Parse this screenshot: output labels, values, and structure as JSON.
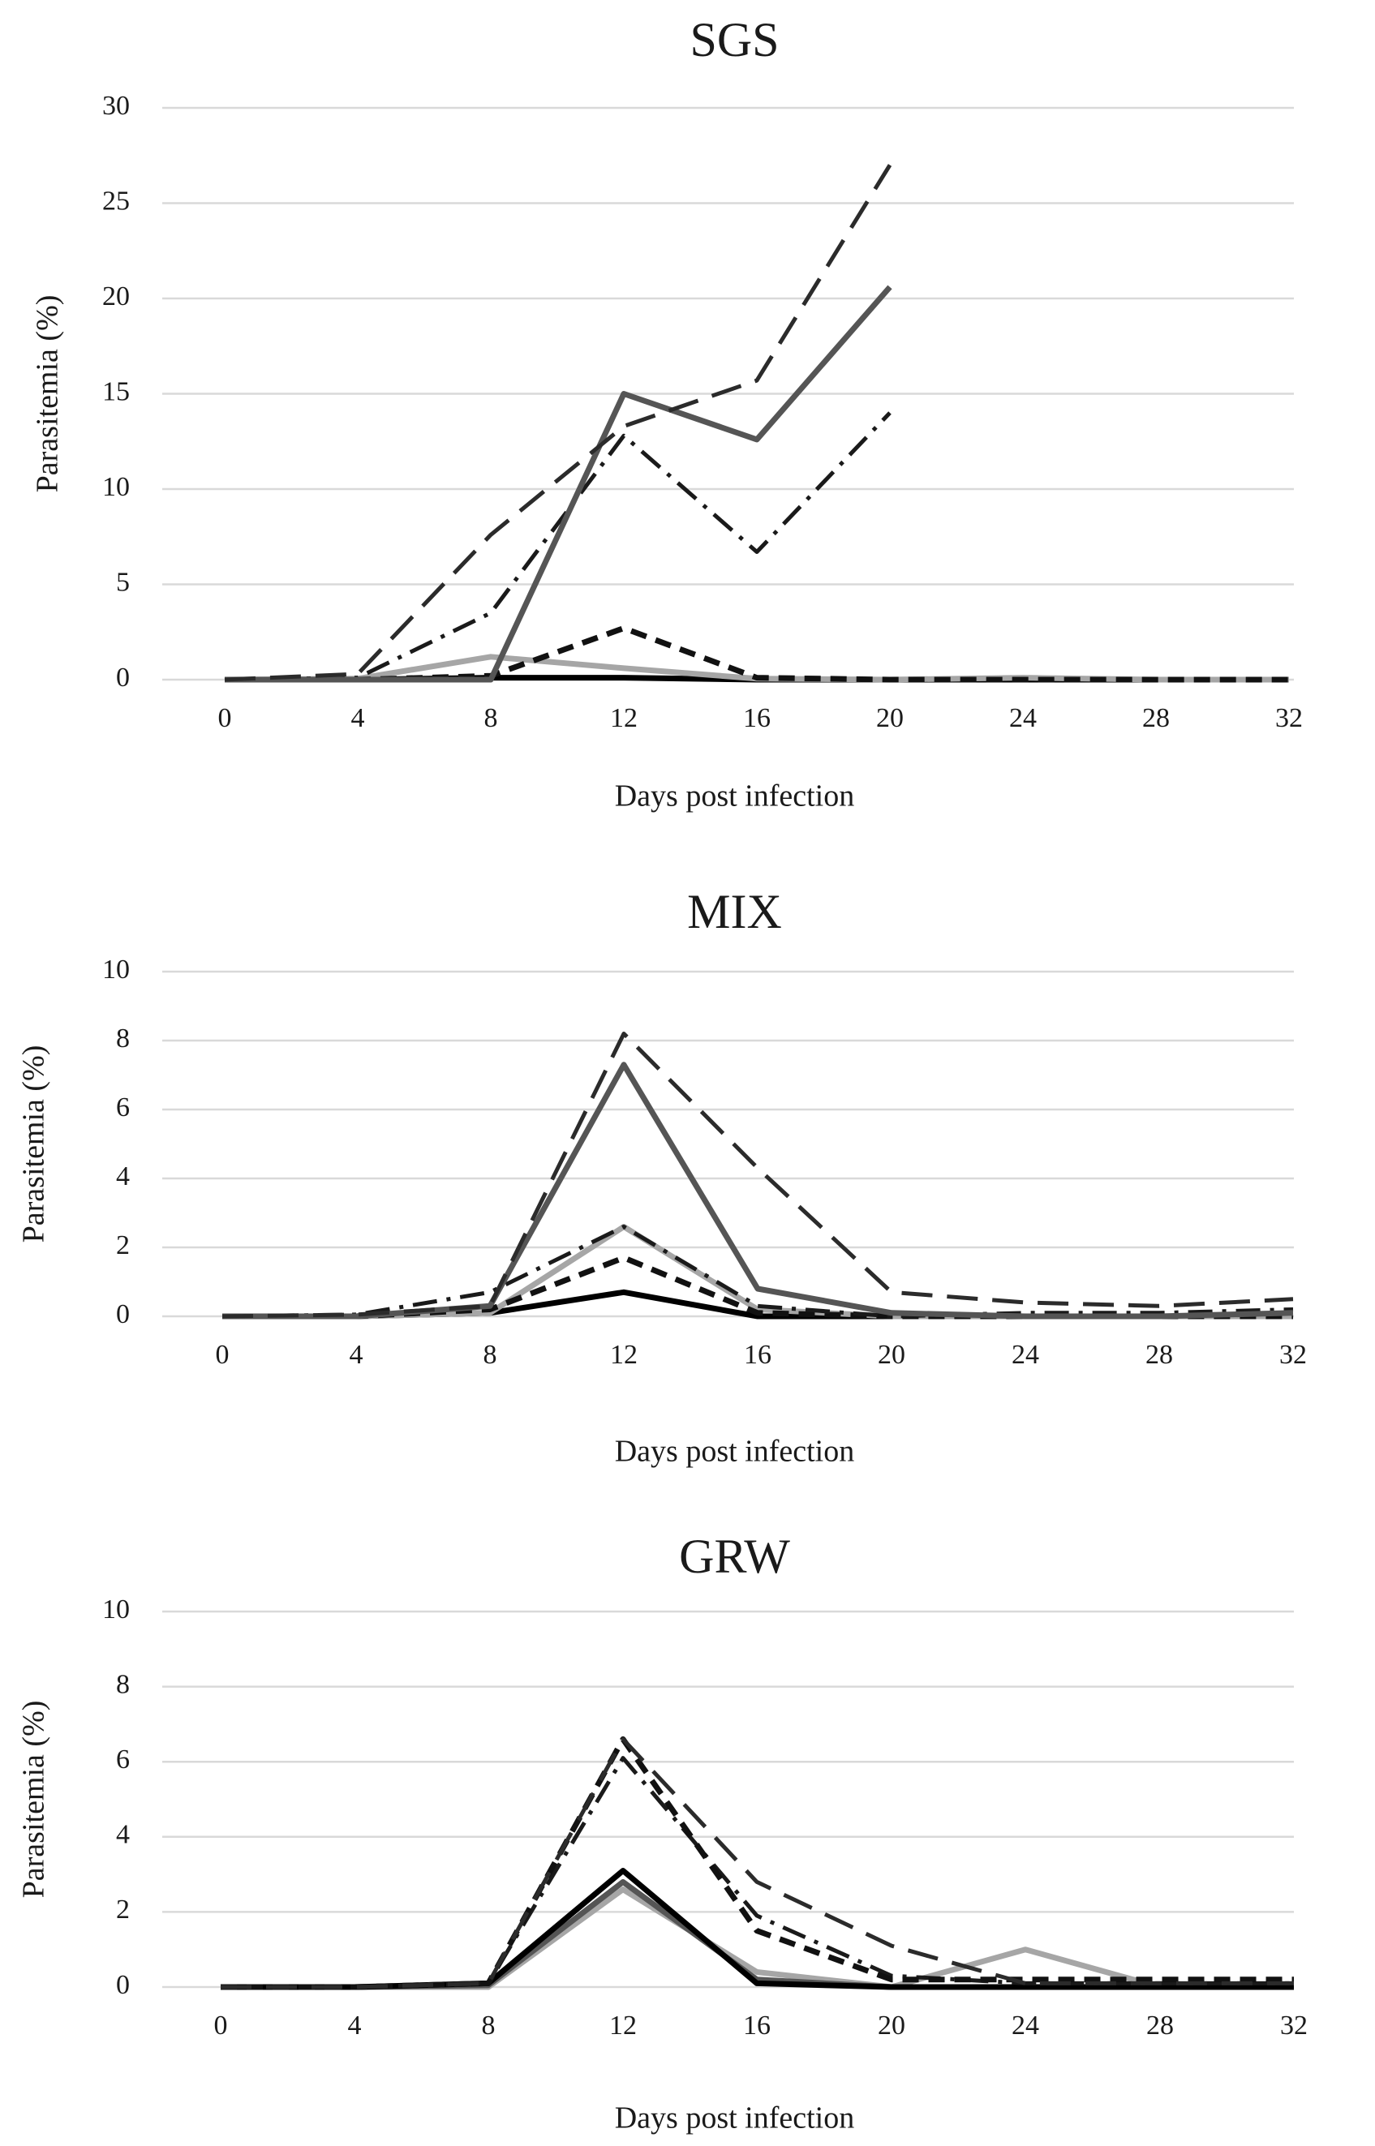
{
  "chart_data": [
    {
      "type": "line",
      "title": "SGS",
      "xlabel": "Days post infection",
      "ylabel": "Parasitemia (%)",
      "x": [
        0,
        4,
        8,
        12,
        16,
        20,
        24,
        28,
        32
      ],
      "x_tick_labels": [
        "0",
        "4",
        "8",
        "12",
        "16",
        "20",
        "24",
        "28",
        "32"
      ],
      "ylim": [
        0,
        30
      ],
      "y_ticks": [
        0,
        5,
        10,
        15,
        20,
        25,
        30
      ],
      "y_tick_labels": [
        "0",
        "5",
        "10",
        "15",
        "20",
        "25",
        "30"
      ],
      "grid": true,
      "legend": "none",
      "series": [
        {
          "name": "long-dash dark",
          "style": "long-dash",
          "color": "#2b2b2b",
          "values": [
            0,
            0.3,
            7.6,
            13.3,
            15.7,
            27.0,
            null,
            null,
            null
          ]
        },
        {
          "name": "solid dark gray",
          "style": "solid",
          "color": "#555555",
          "values": [
            0,
            0,
            0,
            15.0,
            12.6,
            20.6,
            null,
            null,
            null
          ]
        },
        {
          "name": "dash-dot",
          "style": "dash-dot",
          "color": "#1a1a1a",
          "values": [
            0,
            0.1,
            3.5,
            12.8,
            6.7,
            14.0,
            null,
            null,
            null
          ]
        },
        {
          "name": "short-dash black",
          "style": "short-dash",
          "color": "#111111",
          "values": [
            0,
            0,
            0.2,
            2.7,
            0.1,
            0,
            0,
            0,
            0
          ]
        },
        {
          "name": "solid light gray",
          "style": "solid",
          "color": "#a6a6a6",
          "values": [
            0,
            0.05,
            1.2,
            0.6,
            0.05,
            0,
            0.1,
            0,
            0
          ]
        },
        {
          "name": "solid black",
          "style": "solid",
          "color": "#000000",
          "values": [
            0,
            0,
            0.1,
            0.1,
            0,
            0,
            0,
            0,
            0
          ]
        }
      ]
    },
    {
      "type": "line",
      "title": "MIX",
      "xlabel": "Days post infection",
      "ylabel": "Parasitemia (%)",
      "x": [
        0,
        4,
        8,
        12,
        16,
        20,
        24,
        28,
        32
      ],
      "x_tick_labels": [
        "0",
        "4",
        "8",
        "12",
        "16",
        "20",
        "24",
        "28",
        "32"
      ],
      "ylim": [
        0,
        10
      ],
      "y_ticks": [
        0,
        2,
        4,
        6,
        8,
        10
      ],
      "y_tick_labels": [
        "0",
        "2",
        "4",
        "6",
        "8",
        "10"
      ],
      "grid": true,
      "legend": "none",
      "series": [
        {
          "name": "long-dash dark",
          "style": "long-dash",
          "color": "#2b2b2b",
          "values": [
            0,
            0.05,
            0.3,
            8.2,
            4.3,
            0.7,
            0.4,
            0.3,
            0.5
          ]
        },
        {
          "name": "solid dark gray",
          "style": "solid",
          "color": "#555555",
          "values": [
            0,
            0,
            0.3,
            7.3,
            0.8,
            0.1,
            0,
            0,
            0.1
          ]
        },
        {
          "name": "dash-dot",
          "style": "dash-dot",
          "color": "#1a1a1a",
          "values": [
            0,
            0.05,
            0.7,
            2.6,
            0.3,
            0,
            0.1,
            0.1,
            0.2
          ]
        },
        {
          "name": "short-dash black",
          "style": "short-dash",
          "color": "#111111",
          "values": [
            0,
            0,
            0.2,
            1.7,
            0.1,
            0,
            0,
            0,
            0
          ]
        },
        {
          "name": "solid light gray",
          "style": "solid",
          "color": "#a6a6a6",
          "values": [
            0,
            0,
            0.1,
            2.6,
            0.2,
            0,
            0,
            0,
            0
          ]
        },
        {
          "name": "solid black",
          "style": "solid",
          "color": "#000000",
          "values": [
            0,
            0,
            0.1,
            0.7,
            0,
            0,
            0,
            0,
            0
          ]
        }
      ]
    },
    {
      "type": "line",
      "title": "GRW",
      "xlabel": "Days post infection",
      "ylabel": "Parasitemia (%)",
      "x": [
        0,
        4,
        8,
        12,
        16,
        20,
        24,
        28,
        32
      ],
      "x_tick_labels": [
        "0",
        "4",
        "8",
        "12",
        "16",
        "20",
        "24",
        "28",
        "32"
      ],
      "ylim": [
        0,
        10
      ],
      "y_ticks": [
        0,
        2,
        4,
        6,
        8,
        10
      ],
      "y_tick_labels": [
        "0",
        "2",
        "4",
        "6",
        "8",
        "10"
      ],
      "grid": true,
      "legend": "none",
      "series": [
        {
          "name": "long-dash dark",
          "style": "long-dash",
          "color": "#2b2b2b",
          "values": [
            0,
            0,
            0.1,
            6.6,
            2.8,
            1.1,
            0.1,
            0.1,
            0.1
          ]
        },
        {
          "name": "short-dash black",
          "style": "short-dash",
          "color": "#111111",
          "values": [
            0,
            0,
            0.1,
            6.6,
            1.5,
            0.2,
            0.2,
            0.2,
            0.2
          ]
        },
        {
          "name": "dash-dot",
          "style": "dash-dot",
          "color": "#1a1a1a",
          "values": [
            0,
            0,
            0.1,
            6.1,
            1.9,
            0.3,
            0.1,
            0.1,
            0.1
          ]
        },
        {
          "name": "solid black",
          "style": "solid",
          "color": "#000000",
          "values": [
            0,
            0,
            0.1,
            3.1,
            0.1,
            0,
            0,
            0,
            0
          ]
        },
        {
          "name": "solid dark gray",
          "style": "solid",
          "color": "#555555",
          "values": [
            0,
            0,
            0.05,
            2.8,
            0.2,
            0,
            0,
            0,
            0
          ]
        },
        {
          "name": "solid light gray",
          "style": "solid",
          "color": "#a6a6a6",
          "values": [
            0,
            0,
            0,
            2.6,
            0.4,
            0,
            1.0,
            0,
            0
          ]
        }
      ]
    }
  ]
}
